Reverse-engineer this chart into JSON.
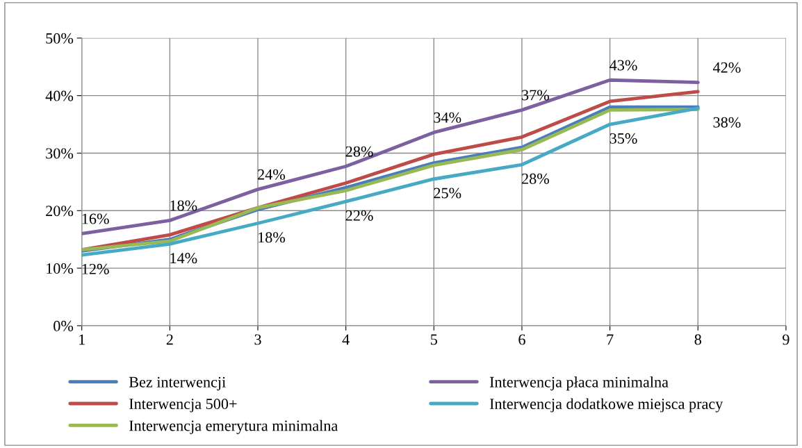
{
  "chart_data": {
    "type": "line",
    "x": [
      1,
      2,
      3,
      4,
      5,
      6,
      7,
      8
    ],
    "xlim": [
      1,
      9
    ],
    "xticks": [
      1,
      2,
      3,
      4,
      5,
      6,
      7,
      8,
      9
    ],
    "ylim": [
      0,
      50
    ],
    "yticks": [
      {
        "value": 0,
        "label": "0%"
      },
      {
        "value": 10,
        "label": "10%"
      },
      {
        "value": 20,
        "label": "20%"
      },
      {
        "value": 30,
        "label": "30%"
      },
      {
        "value": 40,
        "label": "40%"
      },
      {
        "value": 50,
        "label": "50%"
      }
    ],
    "grid": true,
    "legend": "bottom",
    "marker": "none",
    "line_style": "solid",
    "series": [
      {
        "name": "Bez interwencji",
        "color": "#4a7ebb",
        "values": [
          13.0,
          15.0,
          20.2,
          24.0,
          28.3,
          31.0,
          38.0,
          38.0
        ]
      },
      {
        "name": "Interwencja 500+",
        "color": "#be4b48",
        "values": [
          13.2,
          15.8,
          20.5,
          24.8,
          29.8,
          32.8,
          39.0,
          40.7
        ]
      },
      {
        "name": "Interwencja emerytura minimalna",
        "color": "#98b954",
        "values": [
          13.2,
          14.7,
          20.5,
          23.5,
          27.9,
          30.6,
          37.5,
          37.6
        ]
      },
      {
        "name": "Interwencja płaca minimalna",
        "color": "#7d60a0",
        "values": [
          16.0,
          18.3,
          23.7,
          27.7,
          33.6,
          37.5,
          42.7,
          42.3
        ],
        "value_labels": [
          "16%",
          "18%",
          "24%",
          "28%",
          "34%",
          "37%",
          "43%",
          "42%"
        ]
      },
      {
        "name": "Interwencja dodatkowe miejsca pracy",
        "color": "#46aac5",
        "values": [
          12.3,
          14.2,
          17.8,
          21.6,
          25.5,
          28.0,
          35.0,
          37.8
        ],
        "value_labels": [
          "12%",
          "14%",
          "18%",
          "22%",
          "25%",
          "28%",
          "35%",
          "38%"
        ]
      }
    ]
  }
}
